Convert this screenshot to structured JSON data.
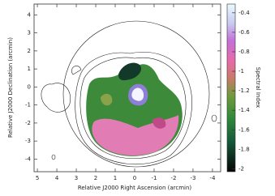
{
  "chart_data": {
    "type": "image",
    "xlabel": "Relative J2000 Right Ascension (arcmin)",
    "ylabel": "Relative J2000 Declination (arcmin)",
    "xlim": [
      5.17,
      -4.42
    ],
    "xticks": [
      5,
      4,
      3,
      2,
      1,
      0,
      -1,
      -2,
      -3,
      -4
    ],
    "ylim": [
      -4.7,
      4.6
    ],
    "yticks": [
      -4,
      -3,
      -2,
      -1,
      0,
      1,
      2,
      3,
      4
    ],
    "colorbar": {
      "label": "Spectral Index",
      "lim": [
        -2.03,
        -0.31
      ],
      "ticks": [
        -0.4,
        -0.6,
        -0.8,
        -1,
        -1.2,
        -1.4,
        -1.6,
        -1.8,
        -2
      ]
    }
  }
}
